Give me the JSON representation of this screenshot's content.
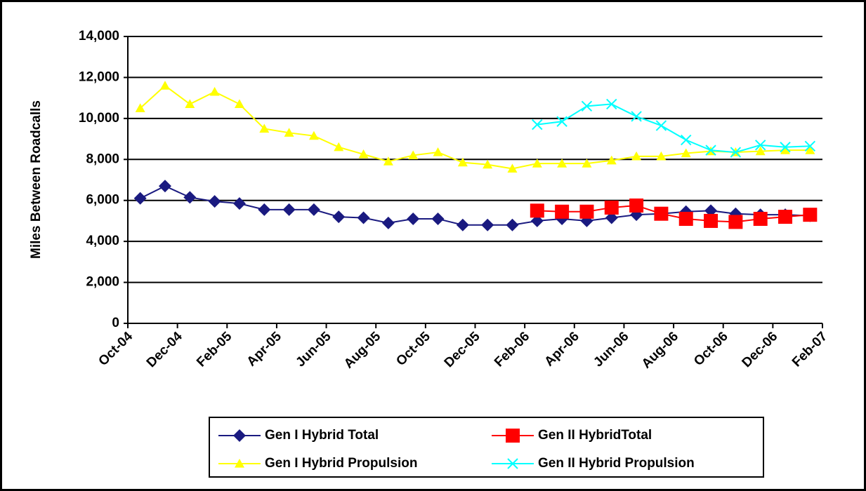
{
  "chart_data": {
    "type": "line",
    "y_label": "Miles Between Roadcalls",
    "x": [
      "Oct-04",
      "Nov-04",
      "Dec-04",
      "Jan-05",
      "Feb-05",
      "Mar-05",
      "Apr-05",
      "May-05",
      "Jun-05",
      "Jul-05",
      "Aug-05",
      "Sep-05",
      "Oct-05",
      "Nov-05",
      "Dec-05",
      "Jan-06",
      "Feb-06",
      "Mar-06",
      "Apr-06",
      "May-06",
      "Jun-06",
      "Jul-06",
      "Aug-06",
      "Sep-06",
      "Oct-06",
      "Nov-06",
      "Dec-06",
      "Jan-07"
    ],
    "xticks": [
      "Oct-04",
      "Dec-04",
      "Feb-05",
      "Apr-05",
      "Jun-05",
      "Aug-05",
      "Oct-05",
      "Dec-05",
      "Feb-06",
      "Apr-06",
      "Jun-06",
      "Aug-06",
      "Oct-06",
      "Dec-06",
      "Feb-07"
    ],
    "ylim": [
      0,
      14000
    ],
    "yticks": [
      {
        "value": 0,
        "label": "0"
      },
      {
        "value": 2000,
        "label": "2,000"
      },
      {
        "value": 4000,
        "label": "4,000"
      },
      {
        "value": 6000,
        "label": "6,000"
      },
      {
        "value": 8000,
        "label": "8,000"
      },
      {
        "value": 10000,
        "label": "10,000"
      },
      {
        "value": 12000,
        "label": "12,000"
      },
      {
        "value": 14000,
        "label": "14,000"
      }
    ],
    "grid": true,
    "series": [
      {
        "name": "Gen I Hybrid Total",
        "color": "#1a1a80",
        "marker": "diamond",
        "values": [
          6100,
          6700,
          6150,
          5950,
          5850,
          5550,
          5550,
          5550,
          5200,
          5150,
          4900,
          5100,
          5100,
          4800,
          4800,
          4800,
          5000,
          5100,
          5000,
          5150,
          5300,
          5350,
          5450,
          5500,
          5350,
          5300,
          5300,
          5250
        ]
      },
      {
        "name": "Gen II HybridTotal",
        "color": "#ff0000",
        "marker": "square",
        "values": [
          null,
          null,
          null,
          null,
          null,
          null,
          null,
          null,
          null,
          null,
          null,
          null,
          null,
          null,
          null,
          null,
          5500,
          5450,
          5450,
          5650,
          5750,
          5350,
          5100,
          5000,
          4950,
          5100,
          5200,
          5300
        ]
      },
      {
        "name": "Gen I Hybrid Propulsion",
        "color": "#ffff00",
        "marker": "triangle",
        "values": [
          10500,
          11600,
          10700,
          11300,
          10700,
          9500,
          9300,
          9150,
          8600,
          8250,
          7900,
          8200,
          8350,
          7850,
          7750,
          7550,
          7800,
          7800,
          7800,
          7950,
          8150,
          8150,
          8300,
          8400,
          8350,
          8400,
          8450,
          8450
        ]
      },
      {
        "name": "Gen II Hybrid Propulsion",
        "color": "#00ffff",
        "marker": "x",
        "values": [
          null,
          null,
          null,
          null,
          null,
          null,
          null,
          null,
          null,
          null,
          null,
          null,
          null,
          null,
          null,
          null,
          9700,
          9850,
          10600,
          10700,
          10100,
          9650,
          8950,
          8450,
          8350,
          8700,
          8600,
          8650
        ]
      }
    ]
  }
}
